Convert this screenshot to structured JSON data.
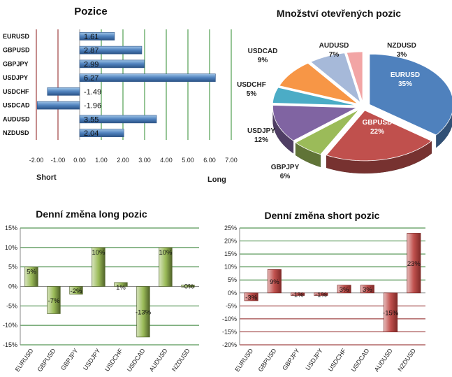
{
  "chart_data": [
    {
      "type": "bar",
      "orientation": "horizontal",
      "title": "Pozice",
      "categories": [
        "EURUSD",
        "GBPUSD",
        "GBPJPY",
        "USDJPY",
        "USDCHF",
        "USDCAD",
        "AUDUSD",
        "NZDUSD"
      ],
      "values": [
        1.61,
        2.87,
        2.99,
        6.27,
        -1.49,
        -1.96,
        3.55,
        2.04
      ],
      "value_labels": [
        "1.61",
        "2.87",
        "2.99",
        "6.27",
        "-1.49",
        "-1.96",
        "3.55",
        "2.04"
      ],
      "xlim": [
        -2,
        7
      ],
      "xticks": [
        "-2.00",
        "-1.00",
        "0.00",
        "1.00",
        "2.00",
        "3.00",
        "4.00",
        "5.00",
        "6.00",
        "7.00"
      ],
      "left_label": "Short",
      "right_label": "Long",
      "colors": {
        "bar": "#4f81bd",
        "negative_grid": "#8b1a1a",
        "positive_grid": "#2e8b2e"
      },
      "grid": true
    },
    {
      "type": "pie",
      "title": "Množství otevřených pozic",
      "labels": [
        "EURUSD",
        "GBPUSD",
        "GBPJPY",
        "USDJPY",
        "USDCHF",
        "USDCAD",
        "AUDUSD",
        "NZDUSD"
      ],
      "values": [
        35,
        22,
        6,
        12,
        5,
        9,
        7,
        3
      ],
      "value_labels": [
        "35%",
        "22%",
        "6%",
        "12%",
        "5%",
        "9%",
        "7%",
        "3%"
      ],
      "colors": [
        "#4f81bd",
        "#c0504d",
        "#9bbb59",
        "#8064a2",
        "#4bacc6",
        "#f79646",
        "#a6b9d9",
        "#f2a5a5"
      ]
    },
    {
      "type": "bar",
      "title": "Denní změna long pozic",
      "categories": [
        "EURUSD",
        "GBPUSD",
        "GBPJPY",
        "USDJPY",
        "USDCHF",
        "USDCAD",
        "AUDUSD",
        "NZDUSD"
      ],
      "values": [
        5,
        -7,
        -2,
        10,
        1,
        -13,
        10,
        0
      ],
      "value_labels": [
        "5%",
        "-7%",
        "-2%",
        "10%",
        "1%",
        "-13%",
        "10%",
        "-0%"
      ],
      "ylim": [
        -15,
        15
      ],
      "yticks": [
        "-15%",
        "-10%",
        "-5%",
        "0%",
        "5%",
        "10%",
        "15%"
      ],
      "colors": {
        "bar": "#77933c",
        "grid": "#2e7d2e"
      },
      "grid": true
    },
    {
      "type": "bar",
      "title": "Denní změna short pozic",
      "categories": [
        "EURUSD",
        "GBPUSD",
        "GBPJPY",
        "USDJPY",
        "USDCHF",
        "USDCAD",
        "AUDUSD",
        "NZDUSD"
      ],
      "values": [
        -3,
        9,
        -1,
        -1,
        3,
        3,
        -15,
        23
      ],
      "value_labels": [
        "-3%",
        "9%",
        "-1%",
        "-1%",
        "3%",
        "3%",
        "-15%",
        "23%"
      ],
      "ylim": [
        -20,
        25
      ],
      "yticks": [
        "-20%",
        "-15%",
        "-10%",
        "-5%",
        "0%",
        "5%",
        "10%",
        "15%",
        "20%",
        "25%"
      ],
      "colors": {
        "bar": "#c0504d",
        "grid": "#2e7d2e",
        "neg_grid": "#8b1a1a"
      },
      "grid": true
    }
  ]
}
